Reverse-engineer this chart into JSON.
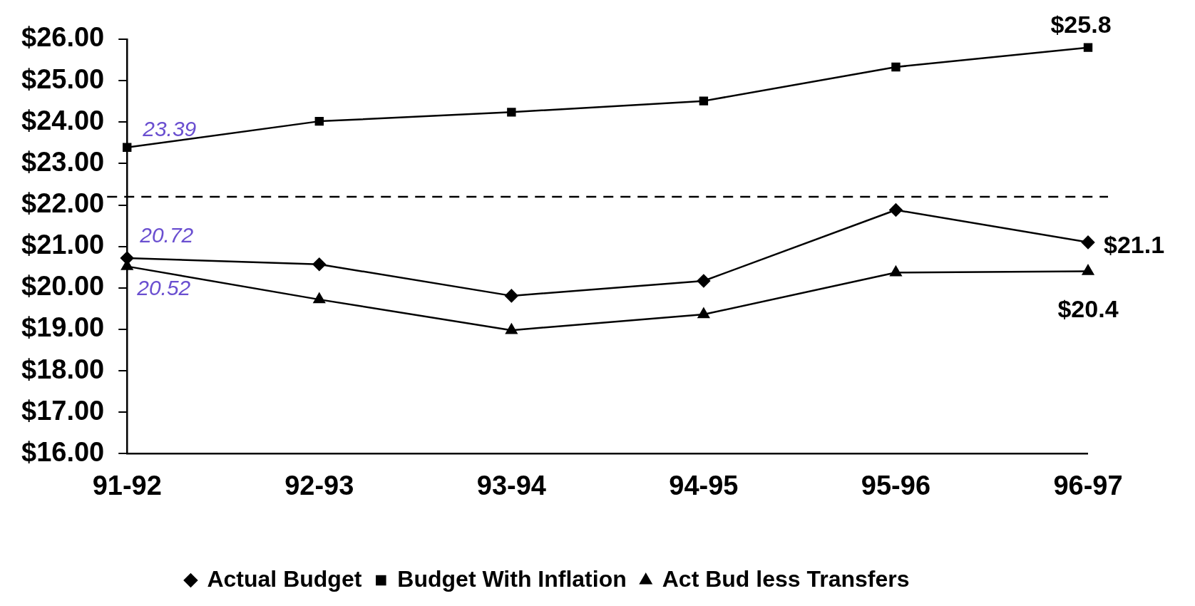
{
  "chart_data": {
    "type": "line",
    "categories": [
      "91-92",
      "92-93",
      "93-94",
      "94-95",
      "95-96",
      "96-97"
    ],
    "series": [
      {
        "name": "Actual Budget",
        "color": "#000000",
        "marker": "diamond",
        "values": [
          20.72,
          20.57,
          19.81,
          20.17,
          21.88,
          21.1
        ],
        "value_labels": [
          "20.72",
          null,
          null,
          null,
          null,
          "$21.1"
        ]
      },
      {
        "name": "Budget With Inflation",
        "color": "#000000",
        "marker": "square",
        "values": [
          23.39,
          24.02,
          24.24,
          24.51,
          25.33,
          25.8
        ],
        "value_labels": [
          "23.39",
          null,
          null,
          null,
          null,
          "$25.8"
        ]
      },
      {
        "name": "Act Bud less Transfers",
        "color": "#000000",
        "marker": "triangle",
        "values": [
          20.52,
          19.72,
          18.98,
          19.36,
          20.37,
          20.4
        ],
        "value_labels": [
          "20.52",
          null,
          null,
          null,
          null,
          "$20.4"
        ]
      }
    ],
    "ylim": [
      16,
      26
    ],
    "yticks": [
      {
        "value": 16,
        "label": "$16.00"
      },
      {
        "value": 17,
        "label": "$17.00"
      },
      {
        "value": 18,
        "label": "$18.00"
      },
      {
        "value": 19,
        "label": "$19.00"
      },
      {
        "value": 20,
        "label": "$20.00"
      },
      {
        "value": 21,
        "label": "$21.00"
      },
      {
        "value": 22,
        "label": "$22.00"
      },
      {
        "value": 23,
        "label": "$23.00"
      },
      {
        "value": 24,
        "label": "$24.00"
      },
      {
        "value": 25,
        "label": "$25.00"
      },
      {
        "value": 26,
        "label": "$26.00"
      }
    ],
    "ref_lines": [
      {
        "axis": "y",
        "value": 22.2,
        "line_style": "dashed",
        "color": "#000000"
      }
    ],
    "legend": "bottom",
    "grid": false,
    "line_style": "solid"
  }
}
